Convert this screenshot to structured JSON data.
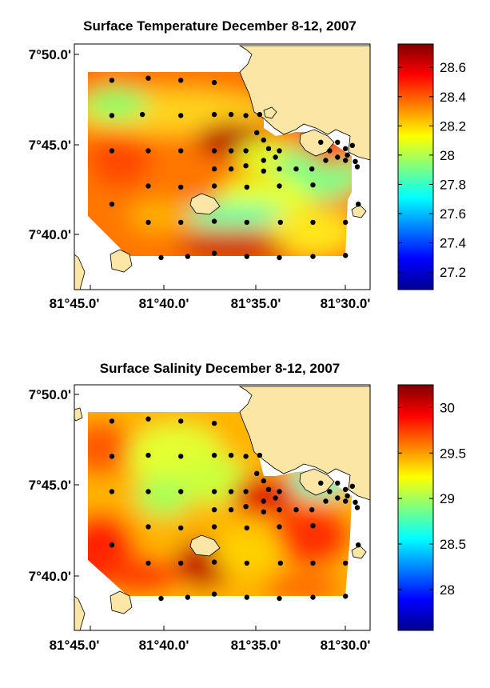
{
  "chart_data": [
    {
      "type": "heatmap",
      "title": "Surface Temperature December 8-12, 2007",
      "xlabel": "",
      "ylabel": "",
      "x_ticks": [
        "81°45.0'",
        "81°40.0'",
        "81°35.0'",
        "81°30.0'"
      ],
      "y_ticks": [
        "7°50.0'",
        "7°45.0'",
        "7°40.0'"
      ],
      "xlim": [
        -81.775,
        -81.475
      ],
      "ylim": [
        7.62,
        7.85
      ],
      "colorbar": {
        "min": 27.08,
        "max": 28.76,
        "ticks": [
          "27.2",
          "27.4",
          "27.6",
          "27.8",
          "28",
          "28.2",
          "28.4",
          "28.6"
        ]
      },
      "stations": [
        [
          -81.737,
          7.816
        ],
        [
          -81.7,
          7.818
        ],
        [
          -81.667,
          7.816
        ],
        [
          -81.633,
          7.814
        ],
        [
          -81.737,
          7.783
        ],
        [
          -81.706,
          7.784
        ],
        [
          -81.667,
          7.783
        ],
        [
          -81.633,
          7.784
        ],
        [
          -81.616,
          7.784
        ],
        [
          -81.601,
          7.783
        ],
        [
          -81.587,
          7.784
        ],
        [
          -81.737,
          7.75
        ],
        [
          -81.7,
          7.75
        ],
        [
          -81.667,
          7.75
        ],
        [
          -81.633,
          7.75
        ],
        [
          -81.616,
          7.75
        ],
        [
          -81.601,
          7.75
        ],
        [
          -81.59,
          7.767
        ],
        [
          -81.583,
          7.76
        ],
        [
          -81.578,
          7.752
        ],
        [
          -81.583,
          7.741
        ],
        [
          -81.567,
          7.75
        ],
        [
          -81.571,
          7.744
        ],
        [
          -81.633,
          7.733
        ],
        [
          -81.616,
          7.733
        ],
        [
          -81.601,
          7.736
        ],
        [
          -81.583,
          7.731
        ],
        [
          -81.567,
          7.733
        ],
        [
          -81.55,
          7.733
        ],
        [
          -81.534,
          7.733
        ],
        [
          -81.525,
          7.758
        ],
        [
          -81.516,
          7.75
        ],
        [
          -81.52,
          7.741
        ],
        [
          -81.508,
          7.744
        ],
        [
          -81.5,
          7.741
        ],
        [
          -81.508,
          7.758
        ],
        [
          -81.5,
          7.752
        ],
        [
          -81.498,
          7.746
        ],
        [
          -81.493,
          7.755
        ],
        [
          -81.49,
          7.74
        ],
        [
          -81.488,
          7.735
        ],
        [
          -81.737,
          7.7
        ],
        [
          -81.7,
          7.717
        ],
        [
          -81.667,
          7.716
        ],
        [
          -81.633,
          7.717
        ],
        [
          -81.6,
          7.716
        ],
        [
          -81.567,
          7.717
        ],
        [
          -81.533,
          7.718
        ],
        [
          -81.7,
          7.683
        ],
        [
          -81.667,
          7.683
        ],
        [
          -81.633,
          7.684
        ],
        [
          -81.6,
          7.683
        ],
        [
          -81.566,
          7.683
        ],
        [
          -81.533,
          7.683
        ],
        [
          -81.5,
          7.683
        ],
        [
          -81.487,
          7.7
        ],
        [
          -81.687,
          7.65
        ],
        [
          -81.66,
          7.651
        ],
        [
          -81.633,
          7.654
        ],
        [
          -81.6,
          7.651
        ],
        [
          -81.567,
          7.65
        ],
        [
          -81.533,
          7.651
        ],
        [
          -81.5,
          7.652
        ]
      ]
    },
    {
      "type": "heatmap",
      "title": "Surface Salinity December 8-12, 2007",
      "xlabel": "",
      "ylabel": "",
      "x_ticks": [
        "81°45.0'",
        "81°40.0'",
        "81°35.0'",
        "81°30.0'"
      ],
      "y_ticks": [
        "7°50.0'",
        "7°45.0'",
        "7°40.0'"
      ],
      "xlim": [
        -81.775,
        -81.475
      ],
      "ylim": [
        7.62,
        7.85
      ],
      "colorbar": {
        "min": 27.55,
        "max": 30.25,
        "ticks": [
          "28",
          "28.5",
          "29",
          "29.5",
          "30"
        ]
      },
      "stations": [
        [
          -81.737,
          7.816
        ],
        [
          -81.7,
          7.818
        ],
        [
          -81.667,
          7.816
        ],
        [
          -81.633,
          7.814
        ],
        [
          -81.737,
          7.783
        ],
        [
          -81.7,
          7.784
        ],
        [
          -81.667,
          7.783
        ],
        [
          -81.633,
          7.784
        ],
        [
          -81.616,
          7.784
        ],
        [
          -81.601,
          7.783
        ],
        [
          -81.587,
          7.784
        ],
        [
          -81.737,
          7.75
        ],
        [
          -81.7,
          7.75
        ],
        [
          -81.667,
          7.75
        ],
        [
          -81.633,
          7.75
        ],
        [
          -81.616,
          7.75
        ],
        [
          -81.601,
          7.75
        ],
        [
          -81.59,
          7.767
        ],
        [
          -81.583,
          7.76
        ],
        [
          -81.578,
          7.752
        ],
        [
          -81.583,
          7.741
        ],
        [
          -81.567,
          7.75
        ],
        [
          -81.571,
          7.744
        ],
        [
          -81.633,
          7.733
        ],
        [
          -81.616,
          7.733
        ],
        [
          -81.601,
          7.736
        ],
        [
          -81.583,
          7.731
        ],
        [
          -81.567,
          7.733
        ],
        [
          -81.55,
          7.733
        ],
        [
          -81.534,
          7.733
        ],
        [
          -81.525,
          7.758
        ],
        [
          -81.516,
          7.75
        ],
        [
          -81.52,
          7.741
        ],
        [
          -81.508,
          7.744
        ],
        [
          -81.5,
          7.741
        ],
        [
          -81.508,
          7.758
        ],
        [
          -81.5,
          7.752
        ],
        [
          -81.498,
          7.746
        ],
        [
          -81.493,
          7.755
        ],
        [
          -81.49,
          7.74
        ],
        [
          -81.488,
          7.735
        ],
        [
          -81.737,
          7.7
        ],
        [
          -81.7,
          7.717
        ],
        [
          -81.667,
          7.716
        ],
        [
          -81.633,
          7.717
        ],
        [
          -81.6,
          7.716
        ],
        [
          -81.567,
          7.717
        ],
        [
          -81.533,
          7.718
        ],
        [
          -81.7,
          7.683
        ],
        [
          -81.667,
          7.683
        ],
        [
          -81.633,
          7.684
        ],
        [
          -81.6,
          7.683
        ],
        [
          -81.566,
          7.683
        ],
        [
          -81.533,
          7.683
        ],
        [
          -81.5,
          7.683
        ],
        [
          -81.487,
          7.7
        ],
        [
          -81.687,
          7.65
        ],
        [
          -81.66,
          7.651
        ],
        [
          -81.633,
          7.654
        ],
        [
          -81.6,
          7.651
        ],
        [
          -81.567,
          7.65
        ],
        [
          -81.533,
          7.651
        ],
        [
          -81.5,
          7.652
        ]
      ]
    }
  ],
  "colors": {
    "land": "#fce6a6",
    "dot": "#000000",
    "frame": "#000000"
  }
}
